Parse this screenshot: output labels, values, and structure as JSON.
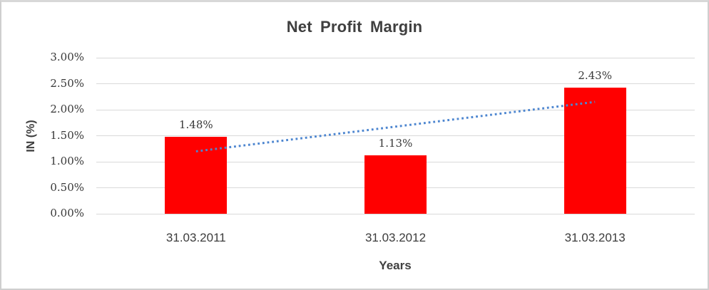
{
  "figure": {
    "background": "#ffffff",
    "border_color": "#cfcfcf"
  },
  "chart_data": {
    "type": "bar",
    "title": "Net Profit Margin",
    "xlabel": "Years",
    "ylabel": "IN (%)",
    "categories": [
      "31.03.2011",
      "31.03.2012",
      "31.03.2013"
    ],
    "values": [
      1.48,
      1.13,
      2.43
    ],
    "data_labels": [
      "1.48%",
      "1.13%",
      "2.43%"
    ],
    "ylim": [
      0,
      3
    ],
    "ytick_step": 0.5,
    "yticks": [
      {
        "value": 0.0,
        "label": "0.00%"
      },
      {
        "value": 0.5,
        "label": "0.50%"
      },
      {
        "value": 1.0,
        "label": "1.00%"
      },
      {
        "value": 1.5,
        "label": "1.50%"
      },
      {
        "value": 2.0,
        "label": "2.00%"
      },
      {
        "value": 2.5,
        "label": "2.50%"
      },
      {
        "value": 3.0,
        "label": "3.00%"
      }
    ],
    "grid": true,
    "legend": "none",
    "bar_color": "#ff0000",
    "gridline_color": "#d9d9d9",
    "text_color": "#3f3f3f",
    "trendline": {
      "type": "linear",
      "style": "dotted",
      "color": "#4d86d0",
      "start_value": 1.2,
      "end_value": 2.15
    }
  }
}
